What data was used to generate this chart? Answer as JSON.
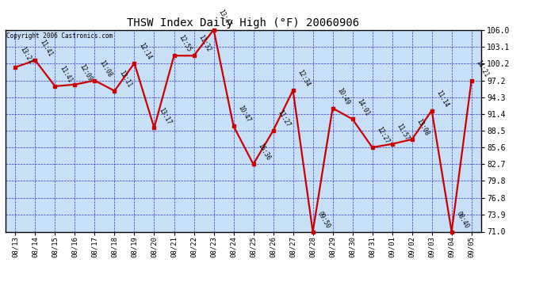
{
  "title": "THSW Index Daily High (°F) 20060906",
  "copyright": "Copyright 2006 Castronics.com",
  "dates": [
    "08/13",
    "08/14",
    "08/15",
    "08/16",
    "08/17",
    "08/18",
    "08/19",
    "08/20",
    "08/21",
    "08/22",
    "08/23",
    "08/24",
    "08/25",
    "08/26",
    "08/27",
    "08/28",
    "08/29",
    "08/30",
    "08/31",
    "09/01",
    "09/02",
    "09/03",
    "09/04",
    "09/05"
  ],
  "values": [
    99.5,
    100.7,
    96.2,
    96.5,
    97.2,
    95.4,
    100.2,
    89.0,
    101.5,
    101.5,
    106.0,
    89.3,
    82.7,
    88.5,
    95.5,
    71.0,
    92.4,
    90.5,
    85.6,
    86.2,
    87.0,
    92.0,
    71.0,
    97.2
  ],
  "times": [
    "13:21",
    "11:41",
    "11:41",
    "12:09",
    "11:08",
    "12:11",
    "12:14",
    "13:17",
    "12:55",
    "11:32",
    "13:47",
    "10:47",
    "16:36",
    "11:27",
    "12:34",
    "09:50",
    "10:49",
    "14:01",
    "12:27",
    "11:57",
    "13:08",
    "11:14",
    "08:40",
    "14:21"
  ],
  "ylim": [
    71.0,
    106.0
  ],
  "yticks": [
    71.0,
    73.9,
    76.8,
    79.8,
    82.7,
    85.6,
    88.5,
    91.4,
    94.3,
    97.2,
    100.2,
    103.1,
    106.0
  ],
  "line_color": "#cc0000",
  "bg_color": "#c8dff8",
  "grid_color": "#3333cc",
  "outer_bg": "#ffffff"
}
